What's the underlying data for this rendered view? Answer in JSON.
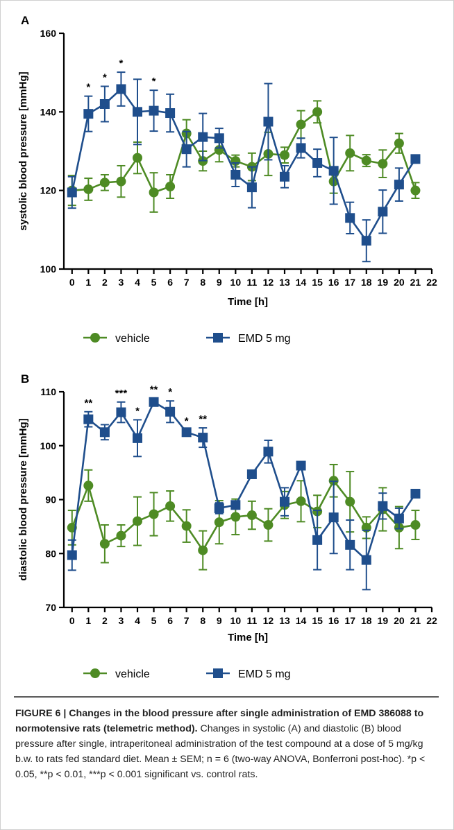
{
  "figure": {
    "caption_prefix": "FIGURE 6 | ",
    "caption_title": "Changes in the blood pressure after single administration of EMD 386088 to normotensive rats (telemetric method).",
    "caption_body": " Changes in systolic (A) and diastolic (B) blood pressure after single, intraperitoneal administration of the test compound at a dose of 5 mg/kg b.w. to rats fed standard diet. Mean ± SEM; n = 6 (two-way ANOVA, Bonferroni post-hoc). *p  < 0.05, **p  < 0.01, ***p  < 0.001 significant vs. control rats."
  },
  "colors": {
    "vehicle": "#4e8b24",
    "emd": "#1f4e8c",
    "axis": "#000000"
  },
  "chart_data": [
    {
      "panel": "A",
      "type": "line",
      "xlabel": "Time [h]",
      "ylabel": "systolic blood pressure [mmHg]",
      "xlim": [
        -0.5,
        22
      ],
      "ylim": [
        100,
        160
      ],
      "xticks": [
        0,
        1,
        2,
        3,
        4,
        5,
        6,
        7,
        8,
        9,
        10,
        11,
        12,
        13,
        14,
        15,
        16,
        17,
        18,
        19,
        20,
        21,
        22
      ],
      "yticks": [
        100,
        120,
        140,
        160
      ],
      "legend_placement": "bottom",
      "series": [
        {
          "name": "vehicle",
          "marker": "circle",
          "x": [
            0,
            1,
            2,
            3,
            4,
            5,
            6,
            7,
            8,
            9,
            10,
            11,
            12,
            13,
            14,
            15,
            16,
            17,
            18,
            19,
            20,
            21
          ],
          "y": [
            120,
            120.3,
            122,
            122.3,
            128.3,
            119.5,
            121,
            134.5,
            127.5,
            130.3,
            127.5,
            126,
            129.3,
            129,
            136.8,
            140,
            122.3,
            129.5,
            127.6,
            126.8,
            132,
            120
          ],
          "err": [
            3.8,
            2.8,
            2,
            4,
            4,
            5,
            3,
            3.5,
            2.5,
            3,
            1.5,
            3.5,
            5.5,
            2,
            3.5,
            2.8,
            3,
            4.5,
            1.5,
            3.5,
            2.5,
            2
          ]
        },
        {
          "name": "EMD 5 mg",
          "marker": "square",
          "x": [
            0,
            1,
            2,
            3,
            4,
            5,
            6,
            7,
            8,
            9,
            10,
            11,
            12,
            13,
            14,
            15,
            16,
            17,
            18,
            19,
            20,
            21
          ],
          "y": [
            119.5,
            139.5,
            142,
            145.8,
            140,
            140.3,
            139.7,
            130.5,
            133.6,
            133.3,
            124,
            120.8,
            137.5,
            123.5,
            130.8,
            127,
            125,
            113,
            107.2,
            114.6,
            121.5,
            128
          ],
          "err": [
            4,
            4.5,
            4.5,
            4.3,
            8.3,
            5.2,
            4.8,
            4.5,
            6,
            2.5,
            3,
            5.2,
            9.7,
            2.8,
            2.5,
            3.5,
            8.5,
            4,
            5.3,
            5.5,
            4.2,
            1
          ]
        }
      ],
      "annotations": [
        {
          "x": 1,
          "text": "*"
        },
        {
          "x": 2,
          "text": "*"
        },
        {
          "x": 3,
          "text": "*"
        },
        {
          "x": 5,
          "text": "*"
        }
      ]
    },
    {
      "panel": "B",
      "type": "line",
      "xlabel": "Time [h]",
      "ylabel": "diastolic blood pressure [mmHg]",
      "xlim": [
        -0.5,
        22
      ],
      "ylim": [
        70,
        110
      ],
      "xticks": [
        0,
        1,
        2,
        3,
        4,
        5,
        6,
        7,
        8,
        9,
        10,
        11,
        12,
        13,
        14,
        15,
        16,
        17,
        18,
        19,
        20,
        21,
        22
      ],
      "yticks": [
        70,
        80,
        90,
        100,
        110
      ],
      "legend_placement": "bottom",
      "series": [
        {
          "name": "vehicle",
          "marker": "circle",
          "x": [
            0,
            1,
            2,
            3,
            4,
            5,
            6,
            7,
            8,
            9,
            10,
            11,
            12,
            13,
            14,
            15,
            16,
            17,
            18,
            19,
            20,
            21
          ],
          "y": [
            84.8,
            92.6,
            81.8,
            83.3,
            86,
            87.3,
            88.8,
            85.1,
            80.6,
            85.8,
            86.8,
            87.1,
            85.3,
            89,
            89.7,
            87.8,
            93.5,
            89.6,
            84.8,
            88.2,
            84.8,
            85.3
          ],
          "err": [
            3.2,
            2.9,
            3.5,
            2,
            4.5,
            4,
            2.8,
            3,
            3.6,
            4,
            3.3,
            2.6,
            3,
            2.5,
            3.8,
            3,
            3,
            5.6,
            2,
            4,
            3.9,
            2.7
          ]
        },
        {
          "name": "EMD 5 mg",
          "marker": "square",
          "x": [
            0,
            1,
            2,
            3,
            4,
            5,
            6,
            7,
            8,
            9,
            10,
            11,
            12,
            13,
            14,
            15,
            16,
            17,
            18,
            19,
            20,
            21
          ],
          "y": [
            79.7,
            104.9,
            102.5,
            106.2,
            101.4,
            108.1,
            106.3,
            102.5,
            101.5,
            88.4,
            89,
            94.7,
            98.9,
            89.6,
            96.3,
            82.5,
            86.7,
            81.6,
            78.8,
            88.8,
            86.5,
            91.1
          ],
          "err": [
            2.8,
            1.4,
            1.4,
            1.9,
            3.4,
            0.7,
            2,
            0.4,
            1.8,
            1,
            0.6,
            0.6,
            2.1,
            2.6,
            0.6,
            5.5,
            6.7,
            4.6,
            5.5,
            2.4,
            1.9,
            0.5
          ]
        }
      ],
      "annotations": [
        {
          "x": 1,
          "text": "**"
        },
        {
          "x": 3,
          "text": "***"
        },
        {
          "x": 4,
          "text": "*"
        },
        {
          "x": 5,
          "text": "**"
        },
        {
          "x": 6,
          "text": "*"
        },
        {
          "x": 7,
          "text": "*"
        },
        {
          "x": 8,
          "text": "**"
        }
      ]
    }
  ]
}
